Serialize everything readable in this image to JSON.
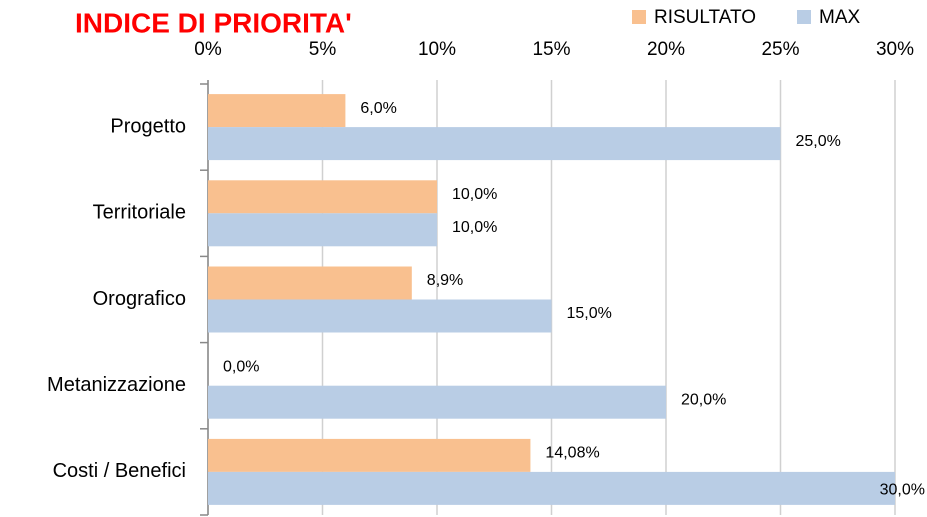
{
  "chart_data": {
    "type": "bar",
    "orientation": "horizontal",
    "title": "INDICE DI PRIORITA'",
    "categories": [
      "Progetto",
      "Territoriale",
      "Orografico",
      "Metanizzazione",
      "Costi / Benefici"
    ],
    "series": [
      {
        "name": "RISULTATO",
        "color": "#f9c08f",
        "values": [
          6.0,
          10.0,
          8.9,
          0.0,
          14.08
        ],
        "value_labels": [
          "6,0%",
          "10,0%",
          "8,9%",
          "0,0%",
          "14,08%"
        ]
      },
      {
        "name": "MAX",
        "color": "#b9cde5",
        "values": [
          25.0,
          10.0,
          15.0,
          20.0,
          30.0
        ],
        "value_labels": [
          "25,0%",
          "10,0%",
          "15,0%",
          "20,0%",
          "30,0%"
        ]
      }
    ],
    "xlim": [
      0,
      30
    ],
    "xticks": [
      {
        "value": 0,
        "label": "0%"
      },
      {
        "value": 5,
        "label": "5%"
      },
      {
        "value": 10,
        "label": "10%"
      },
      {
        "value": 15,
        "label": "15%"
      },
      {
        "value": 20,
        "label": "20%"
      },
      {
        "value": 25,
        "label": "25%"
      },
      {
        "value": 30,
        "label": "30%"
      }
    ],
    "grid": true,
    "legend": "top-right"
  }
}
